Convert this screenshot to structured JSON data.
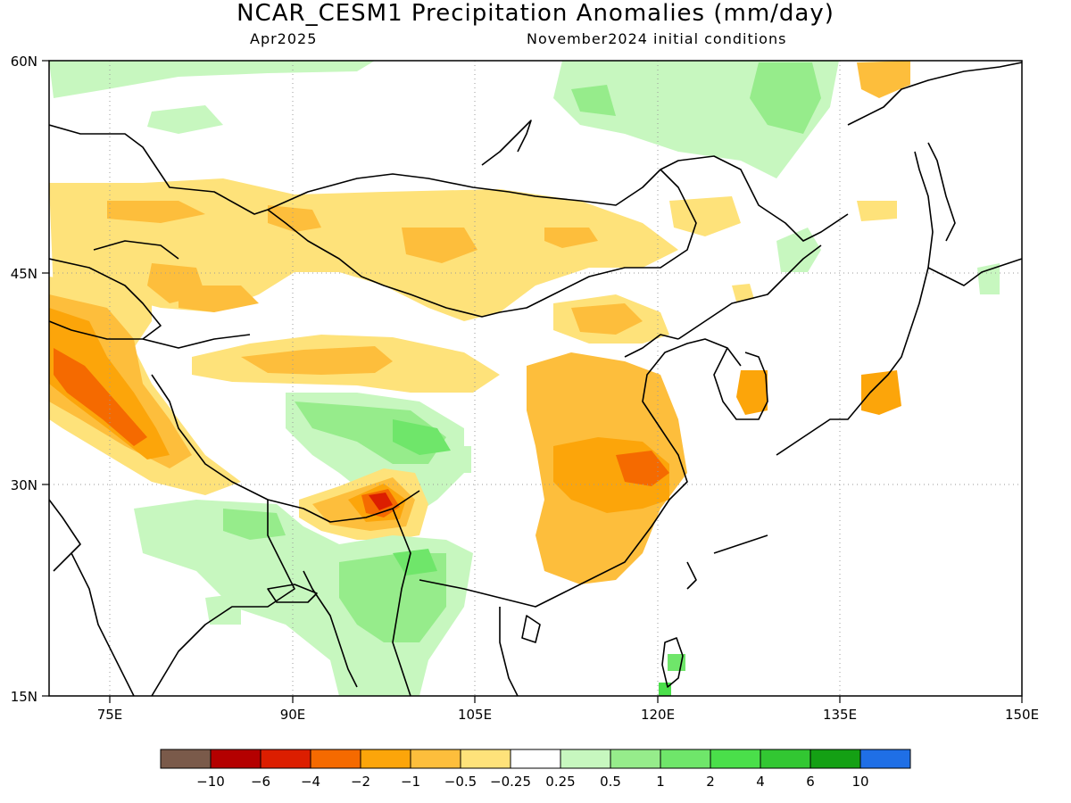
{
  "title": "NCAR_CESM1 Precipitation Anomalies (mm/day)",
  "subtitle_left": "Apr2025",
  "subtitle_right": "November2024 initial conditions",
  "map": {
    "lon_range": [
      70,
      150
    ],
    "lat_range": [
      15,
      60
    ],
    "lat_ticks": [
      {
        "value": 60,
        "label": "60N"
      },
      {
        "value": 45,
        "label": "45N"
      },
      {
        "value": 30,
        "label": "30N"
      },
      {
        "value": 15,
        "label": "15N"
      }
    ],
    "lon_ticks": [
      {
        "value": 75,
        "label": "75E"
      },
      {
        "value": 90,
        "label": "90E"
      },
      {
        "value": 105,
        "label": "105E"
      },
      {
        "value": 120,
        "label": "120E"
      },
      {
        "value": 135,
        "label": "135E"
      },
      {
        "value": 150,
        "label": "150E"
      }
    ],
    "gridlines": true
  },
  "colorbar": {
    "colors": [
      "#7a5a4a",
      "#b40000",
      "#dc1e00",
      "#f56a00",
      "#fca50a",
      "#fdbe3c",
      "#fee27a",
      "#ffffff",
      "#c7f7bf",
      "#96ec8b",
      "#6fe66a",
      "#4adf4a",
      "#32c732",
      "#14a014",
      "#1f6fe6"
    ],
    "labels": [
      "−10",
      "−6",
      "−4",
      "−2",
      "−1",
      "−0.5",
      "−0.25",
      "0.25",
      "0.5",
      "1",
      "2",
      "4",
      "6",
      "10"
    ]
  }
}
